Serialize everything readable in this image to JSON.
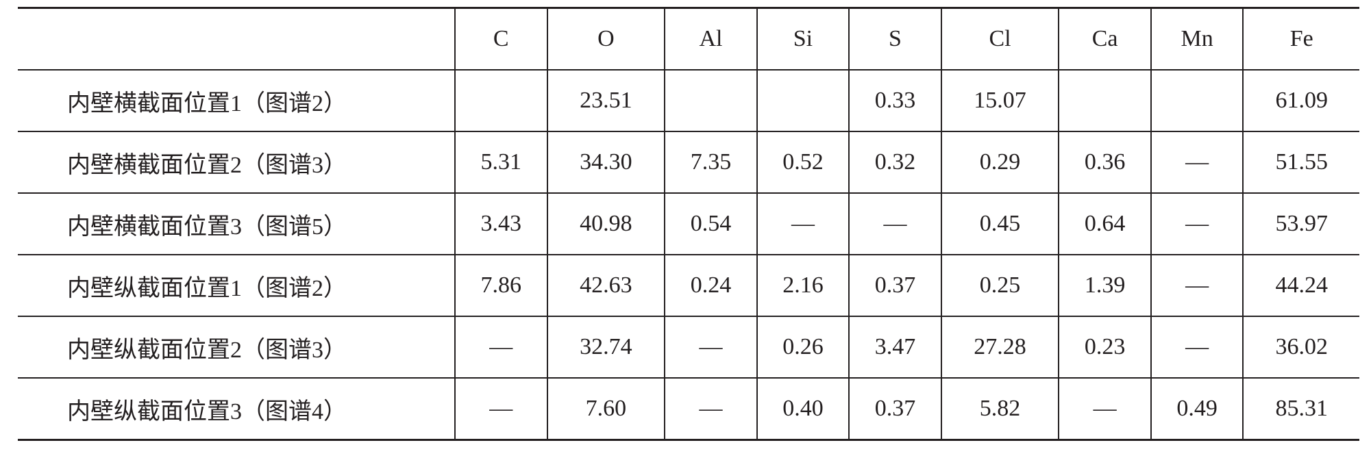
{
  "table": {
    "header": [
      "C",
      "O",
      "Al",
      "Si",
      "S",
      "Cl",
      "Ca",
      "Mn",
      "Fe"
    ],
    "rows": [
      {
        "label": "内壁横截面位置1（图谱2）",
        "cells": [
          null,
          "23.51",
          null,
          null,
          "0.33",
          "15.07",
          null,
          null,
          "61.09"
        ]
      },
      {
        "label": "内壁横截面位置2（图谱3）",
        "cells": [
          "5.31",
          "34.30",
          "7.35",
          "0.52",
          "0.32",
          "0.29",
          "0.36",
          "—",
          "51.55"
        ]
      },
      {
        "label": "内壁横截面位置3（图谱5）",
        "cells": [
          "3.43",
          "40.98",
          "0.54",
          "—",
          "—",
          "0.45",
          "0.64",
          "—",
          "53.97"
        ]
      },
      {
        "label": "内壁纵截面位置1（图谱2）",
        "cells": [
          "7.86",
          "42.63",
          "0.24",
          "2.16",
          "0.37",
          "0.25",
          "1.39",
          "—",
          "44.24"
        ]
      },
      {
        "label": "内壁纵截面位置2（图谱3）",
        "cells": [
          "—",
          "32.74",
          "—",
          "0.26",
          "3.47",
          "27.28",
          "0.23",
          "—",
          "36.02"
        ]
      },
      {
        "label": "内壁纵截面位置3（图谱4）",
        "cells": [
          "—",
          "7.60",
          "—",
          "0.40",
          "0.37",
          "5.82",
          "—",
          "0.49",
          "85.31"
        ]
      }
    ]
  }
}
